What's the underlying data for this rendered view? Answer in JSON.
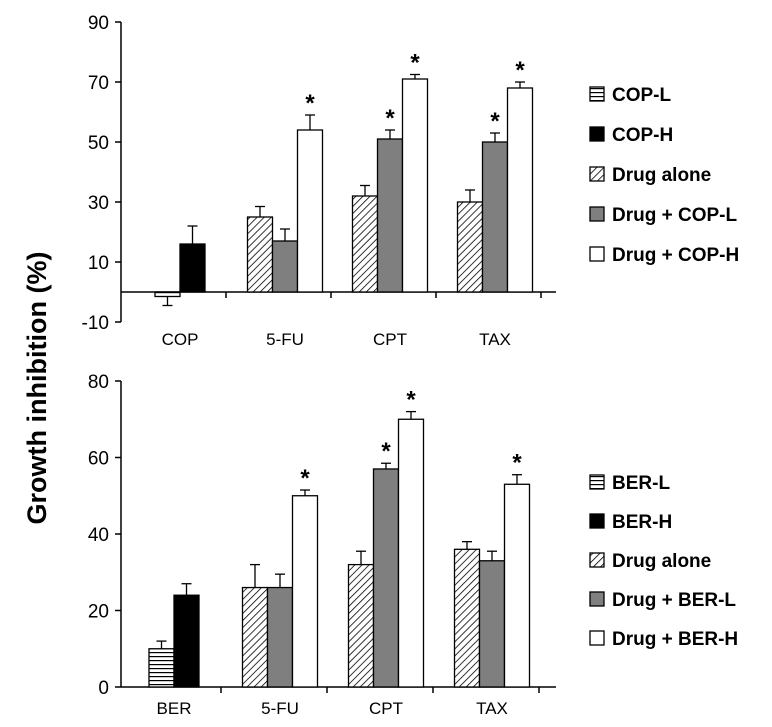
{
  "ylabel": "Growth inhibition (%)",
  "chart_data": [
    {
      "type": "bar",
      "panel": "top",
      "categories": [
        "COP",
        "5-FU",
        "CPT",
        "TAX"
      ],
      "ylim": [
        -10,
        90
      ],
      "yticks": [
        -10,
        10,
        30,
        50,
        70,
        90
      ],
      "ylabel": "Growth inhibition (%)",
      "grid": false,
      "legend_position": "right",
      "series": [
        {
          "name": "COP-L",
          "pattern": "hlines",
          "values": [
            -1.5,
            null,
            null,
            null
          ],
          "errors": [
            3,
            null,
            null,
            null
          ],
          "significant": [
            false,
            false,
            false,
            false
          ]
        },
        {
          "name": "COP-H",
          "pattern": "solid-black",
          "values": [
            16,
            null,
            null,
            null
          ],
          "errors": [
            6,
            null,
            null,
            null
          ],
          "significant": [
            false,
            false,
            false,
            false
          ]
        },
        {
          "name": "Drug alone",
          "pattern": "diagonal",
          "values": [
            null,
            25,
            32,
            30
          ],
          "errors": [
            null,
            3.5,
            3.5,
            4
          ],
          "significant": [
            false,
            false,
            false,
            false
          ]
        },
        {
          "name": "Drug + COP-L",
          "pattern": "solid-gray",
          "values": [
            null,
            17,
            51,
            50
          ],
          "errors": [
            null,
            4,
            3,
            3
          ],
          "significant": [
            false,
            false,
            true,
            true
          ]
        },
        {
          "name": "Drug + COP-H",
          "pattern": "white",
          "values": [
            null,
            54,
            71,
            68
          ],
          "errors": [
            null,
            5,
            1.5,
            2
          ],
          "significant": [
            false,
            true,
            true,
            true
          ]
        }
      ]
    },
    {
      "type": "bar",
      "panel": "bottom",
      "categories": [
        "BER",
        "5-FU",
        "CPT",
        "TAX"
      ],
      "ylim": [
        0,
        80
      ],
      "yticks": [
        0,
        20,
        40,
        60,
        80
      ],
      "ylabel": "Growth inhibition (%)",
      "grid": false,
      "legend_position": "right",
      "series": [
        {
          "name": "BER-L",
          "pattern": "hlines",
          "values": [
            10,
            null,
            null,
            null
          ],
          "errors": [
            2,
            null,
            null,
            null
          ],
          "significant": [
            false,
            false,
            false,
            false
          ]
        },
        {
          "name": "BER-H",
          "pattern": "solid-black",
          "values": [
            24,
            null,
            null,
            null
          ],
          "errors": [
            3,
            null,
            null,
            null
          ],
          "significant": [
            false,
            false,
            false,
            false
          ]
        },
        {
          "name": "Drug alone",
          "pattern": "diagonal",
          "values": [
            null,
            26,
            32,
            36
          ],
          "errors": [
            null,
            6,
            3.5,
            2
          ],
          "significant": [
            false,
            false,
            false,
            false
          ]
        },
        {
          "name": "Drug + BER-L",
          "pattern": "solid-gray",
          "values": [
            null,
            26,
            57,
            33
          ],
          "errors": [
            null,
            3.5,
            1.5,
            2.5
          ],
          "significant": [
            false,
            false,
            true,
            false
          ]
        },
        {
          "name": "Drug + BER-H",
          "pattern": "white",
          "values": [
            null,
            50,
            70,
            53
          ],
          "errors": [
            null,
            1.5,
            2,
            2.5
          ],
          "significant": [
            false,
            true,
            true,
            true
          ]
        }
      ]
    }
  ],
  "significance_marker": "*",
  "colors": {
    "solid_black": "#000000",
    "solid_gray": "#7f7f7f",
    "white": "#ffffff",
    "stroke": "#000000"
  }
}
